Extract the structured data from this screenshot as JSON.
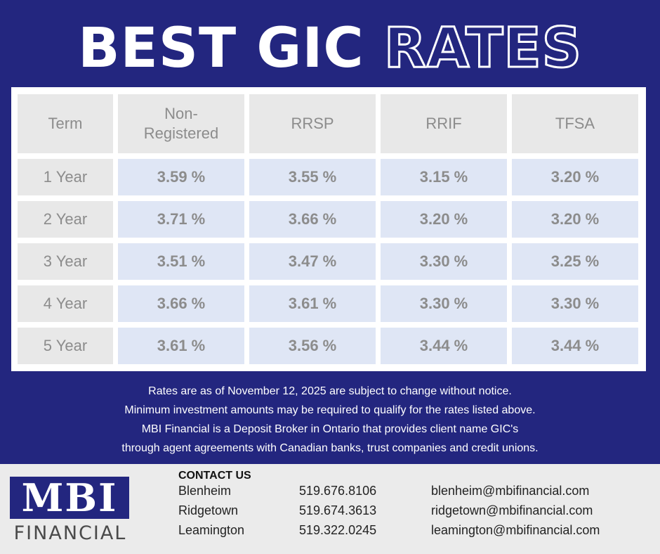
{
  "title": {
    "solid": "BEST GIC ",
    "outline": "RATES"
  },
  "table": {
    "headers": [
      "Term",
      "Non-\nRegistered",
      "RRSP",
      "RRIF",
      "TFSA"
    ],
    "rows": [
      {
        "term": "1 Year",
        "rates": [
          "3.59 %",
          "3.55 %",
          "3.15 %",
          "3.20 %"
        ]
      },
      {
        "term": "2 Year",
        "rates": [
          "3.71 %",
          "3.66 %",
          "3.20 %",
          "3.20 %"
        ]
      },
      {
        "term": "3 Year",
        "rates": [
          "3.51 %",
          "3.47 %",
          "3.30 %",
          "3.25 %"
        ]
      },
      {
        "term": "4 Year",
        "rates": [
          "3.66 %",
          "3.61 %",
          "3.30 %",
          "3.30 %"
        ]
      },
      {
        "term": "5 Year",
        "rates": [
          "3.61 %",
          "3.56 %",
          "3.44 %",
          "3.44 %"
        ]
      }
    ]
  },
  "notes": [
    "Rates are as of November 12, 2025 are subject to change without notice.",
    "Minimum investment amounts may be required to qualify for the rates listed above.",
    "MBI Financial is a Deposit Broker in Ontario that provides client name GIC's",
    "through agent agreements with Canadian banks, trust companies and credit unions."
  ],
  "logo": {
    "main": "MBI",
    "sub": "FINANCIAL"
  },
  "contact": {
    "title": "CONTACT US",
    "rows": [
      {
        "city": "Blenheim",
        "phone": "519.676.8106",
        "email": "blenheim@mbifinancial.com"
      },
      {
        "city": "Ridgetown",
        "phone": "519.674.3613",
        "email": "ridgetown@mbifinancial.com"
      },
      {
        "city": "Leamington",
        "phone": "519.322.0245",
        "email": "leamington@mbifinancial.com"
      }
    ]
  },
  "colors": {
    "background": "#23267f",
    "rate_cell": "#dfe6f5",
    "header_cell": "#e8e8e8",
    "footer": "#ebebeb"
  }
}
